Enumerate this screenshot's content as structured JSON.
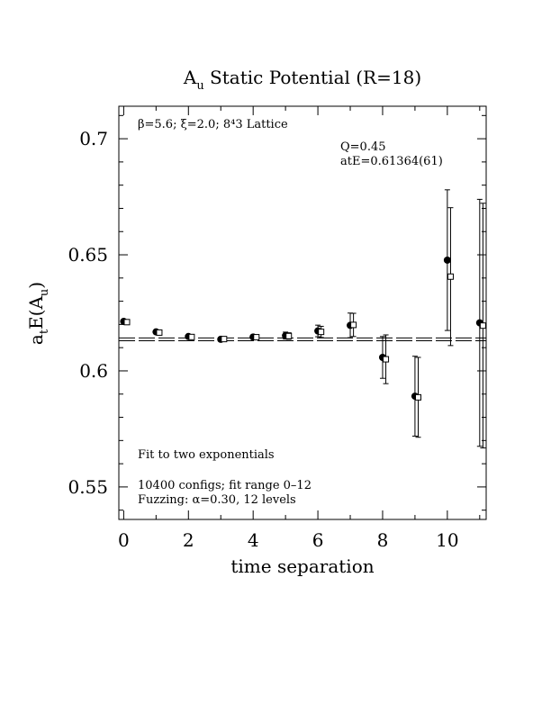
{
  "chart_data": {
    "type": "scatter",
    "title_main": "A",
    "title_sub": "u",
    "title_rest": " Static Potential (R=18)",
    "xlabel": "time separation",
    "ylabel_main": "a",
    "ylabel_sub1": "t",
    "ylabel_mid": "E(A",
    "ylabel_sub2": "u",
    "ylabel_end": ")",
    "xlim": [
      -0.15,
      11.2
    ],
    "ylim": [
      0.536,
      0.714
    ],
    "x_ticks": [
      "0",
      "2",
      "4",
      "6",
      "8",
      "10"
    ],
    "y_ticks": [
      "0.55",
      "0.6",
      "0.65",
      "0.7"
    ],
    "annotations": {
      "lattice": "β=5.6; ξ=2.0; 8⁴3 Lattice",
      "q": "Q=0.45",
      "fit_energy": "atE=0.61364(61)",
      "fit_type": "Fit to two exponentials",
      "configs": "10400 configs; fit range 0–12",
      "fuzzing": "Fuzzing: α=0.30, 12 levels"
    },
    "fit_band": [
      0.613,
      0.6142
    ],
    "series": [
      {
        "marker": "filled-circle",
        "points": [
          {
            "x": 0,
            "y": 0.6213,
            "err": 0.0005
          },
          {
            "x": 1,
            "y": 0.6168,
            "err": 0.0006
          },
          {
            "x": 2,
            "y": 0.6148,
            "err": 0.0007
          },
          {
            "x": 3,
            "y": 0.6136,
            "err": 0.0007
          },
          {
            "x": 4,
            "y": 0.6146,
            "err": 0.0009
          },
          {
            "x": 5,
            "y": 0.6152,
            "err": 0.0015
          },
          {
            "x": 6,
            "y": 0.6172,
            "err": 0.0025
          },
          {
            "x": 7,
            "y": 0.6196,
            "err": 0.0053
          },
          {
            "x": 8,
            "y": 0.6058,
            "err": 0.009
          },
          {
            "x": 9,
            "y": 0.5891,
            "err": 0.0172
          },
          {
            "x": 10,
            "y": 0.6477,
            "err": 0.0303
          },
          {
            "x": 11,
            "y": 0.6207,
            "err": 0.0532
          }
        ]
      },
      {
        "marker": "open-square",
        "points": [
          {
            "x": 0.1,
            "y": 0.621,
            "err": 0.0005
          },
          {
            "x": 1.1,
            "y": 0.6165,
            "err": 0.0006
          },
          {
            "x": 2.1,
            "y": 0.6146,
            "err": 0.0007
          },
          {
            "x": 3.1,
            "y": 0.6137,
            "err": 0.0007
          },
          {
            "x": 4.1,
            "y": 0.6145,
            "err": 0.0009
          },
          {
            "x": 5.1,
            "y": 0.615,
            "err": 0.0014
          },
          {
            "x": 6.1,
            "y": 0.6168,
            "err": 0.0024
          },
          {
            "x": 7.1,
            "y": 0.6198,
            "err": 0.005
          },
          {
            "x": 8.1,
            "y": 0.605,
            "err": 0.0105
          },
          {
            "x": 9.1,
            "y": 0.5886,
            "err": 0.0172
          },
          {
            "x": 10.1,
            "y": 0.6406,
            "err": 0.0297
          },
          {
            "x": 11.1,
            "y": 0.6195,
            "err": 0.0527
          }
        ]
      }
    ]
  }
}
